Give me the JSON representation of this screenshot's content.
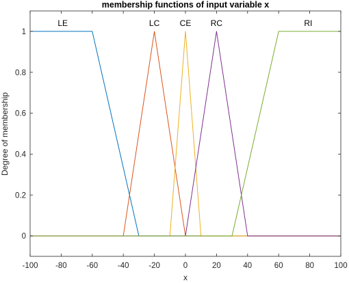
{
  "chart_data": {
    "type": "line",
    "title": "membership functions of input variable x",
    "xlabel": "x",
    "ylabel": "Degree of membership",
    "xlim": [
      -100,
      100
    ],
    "ylim": [
      -0.1,
      1.1
    ],
    "xticks": [
      "-100",
      "-80",
      "-60",
      "-40",
      "-20",
      "0",
      "20",
      "40",
      "60",
      "80",
      "100"
    ],
    "yticks": [
      "0",
      "0.2",
      "0.4",
      "0.6",
      "0.8",
      "1"
    ],
    "grid": false,
    "series": [
      {
        "name": "LE",
        "color": "#0072BD",
        "shape": "trapmf",
        "x": [
          -100,
          -60,
          -30,
          100
        ],
        "y": [
          1,
          1,
          0,
          0
        ]
      },
      {
        "name": "LC",
        "color": "#D95319",
        "shape": "trimf",
        "x": [
          -100,
          -40,
          -20,
          0,
          100
        ],
        "y": [
          0,
          0,
          1,
          0,
          0
        ]
      },
      {
        "name": "CE",
        "color": "#EDB120",
        "shape": "trimf",
        "x": [
          -100,
          -10,
          0,
          10,
          100
        ],
        "y": [
          0,
          0,
          1,
          0,
          0
        ]
      },
      {
        "name": "RC",
        "color": "#7E2F8E",
        "shape": "trimf",
        "x": [
          -100,
          0,
          20,
          40,
          100
        ],
        "y": [
          0,
          0,
          1,
          0,
          0
        ]
      },
      {
        "name": "RI",
        "color": "#77AC30",
        "shape": "trapmf",
        "x": [
          -100,
          30,
          60,
          100
        ],
        "y": [
          0,
          0,
          1,
          1
        ]
      }
    ]
  }
}
